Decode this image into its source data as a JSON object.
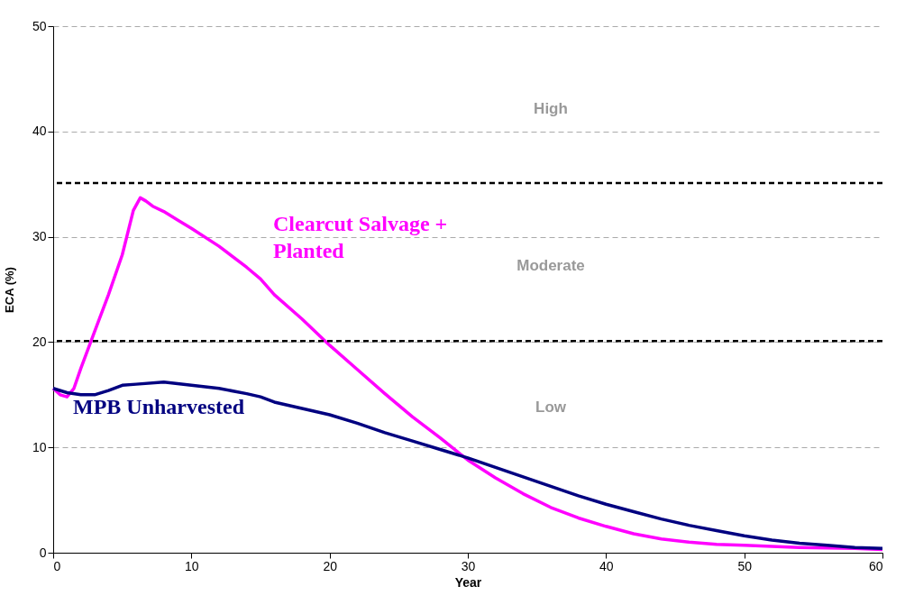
{
  "chart_data": {
    "type": "line",
    "xlabel": "Year",
    "ylabel": "ECA (%)",
    "xlim": [
      0,
      60
    ],
    "xticks": [
      0,
      10,
      20,
      30,
      40,
      50,
      60
    ],
    "ylim": [
      0,
      50
    ],
    "yticks": [
      0,
      10,
      20,
      30,
      40,
      50
    ],
    "grid": "y",
    "line_style": "solid",
    "marker": "none",
    "series": [
      {
        "name": "Clearcut Salvage + Planted",
        "color": "#ff00ff",
        "x": [
          0,
          0.5,
          1,
          1.5,
          2,
          3,
          4,
          5,
          5.8,
          6.3,
          6.7,
          7.2,
          8,
          9,
          10,
          12,
          14,
          15,
          16,
          18,
          20,
          22,
          24,
          26,
          28,
          30,
          32,
          34,
          36,
          38,
          40,
          42,
          44,
          46,
          48,
          50,
          54,
          58,
          60
        ],
        "values": [
          15.6,
          15.0,
          14.8,
          15.6,
          17.5,
          21,
          24.5,
          28.3,
          32.5,
          33.7,
          33.4,
          32.9,
          32.4,
          31.6,
          30.8,
          29.1,
          27.1,
          26,
          24.5,
          22.2,
          19.7,
          17.4,
          15.1,
          12.9,
          10.9,
          8.8,
          7.1,
          5.6,
          4.3,
          3.3,
          2.5,
          1.8,
          1.3,
          1.0,
          0.8,
          0.7,
          0.5,
          0.4,
          0.3
        ]
      },
      {
        "name": "MPB Unharvested",
        "color": "#000080",
        "x": [
          0,
          1,
          2,
          3,
          4,
          5,
          6,
          8,
          10,
          12,
          14,
          15,
          16,
          18,
          20,
          22,
          24,
          26,
          28,
          30,
          32,
          34,
          36,
          38,
          40,
          42,
          44,
          46,
          48,
          50,
          52,
          54,
          56,
          58,
          60
        ],
        "values": [
          15.6,
          15.2,
          15.0,
          15.0,
          15.4,
          15.9,
          16.0,
          16.2,
          15.9,
          15.6,
          15.1,
          14.8,
          14.3,
          13.7,
          13.1,
          12.3,
          11.4,
          10.6,
          9.8,
          9.0,
          8.1,
          7.2,
          6.3,
          5.4,
          4.6,
          3.9,
          3.2,
          2.6,
          2.1,
          1.6,
          1.2,
          0.9,
          0.7,
          0.5,
          0.4
        ]
      }
    ],
    "ref_lines": [
      {
        "axis": "y",
        "value": 35.1,
        "color": "#000000",
        "line_style": "dashed"
      },
      {
        "axis": "y",
        "value": 20.1,
        "color": "#000000",
        "line_style": "dashed"
      }
    ],
    "annotations": [
      "High",
      "Moderate",
      "Low"
    ]
  }
}
